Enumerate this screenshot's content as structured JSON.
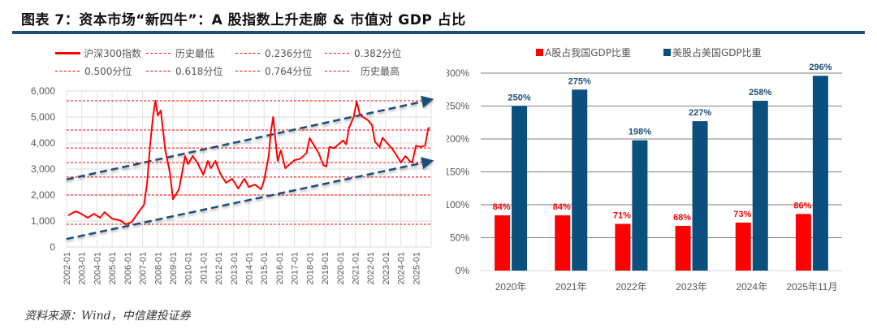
{
  "title": "图表 7：资本市场“新四牛”：A 股指数上升走廊 & 市值对 GDP 占比",
  "source": "资料来源：Wind，中信建投证券",
  "colors": {
    "accent": "#1f4e79",
    "red": "#ff0000",
    "blue": "#0b4f7f",
    "trend": "#1f4e79"
  },
  "chart_data": [
    {
      "type": "line",
      "title": "",
      "legend": [
        "沪深300指数",
        "历史最低",
        "0.236分位",
        "0.382分位",
        "0.500分位",
        "0.618分位",
        "0.764分位",
        "历史最高"
      ],
      "legend_position": "top",
      "ylim": [
        0,
        6000
      ],
      "y_ticks": [
        "0",
        "1,000",
        "2,000",
        "3,000",
        "4,000",
        "5,000",
        "6,000"
      ],
      "y_tick_values": [
        0,
        1000,
        2000,
        3000,
        4000,
        5000,
        6000
      ],
      "x_ticks": [
        "2002-01",
        "2003-01",
        "2004-01",
        "2005-01",
        "2006-01",
        "2007-01",
        "2008-01",
        "2009-01",
        "2010-01",
        "2011-01",
        "2012-01",
        "2013-01",
        "2014-01",
        "2015-01",
        "2016-01",
        "2017-01",
        "2018-01",
        "2019-01",
        "2020-01",
        "2021-01",
        "2022-01",
        "2023-01",
        "2024-01",
        "2025-01"
      ],
      "xlim": [
        2002.0,
        2026.0
      ],
      "grid": true,
      "series": [
        {
          "name": "沪深300指数",
          "x": [
            2002.1,
            2002.6,
            2002.9,
            2003.4,
            2003.8,
            2004.2,
            2004.5,
            2005.0,
            2005.5,
            2005.9,
            2006.3,
            2006.7,
            2007.1,
            2007.3,
            2007.5,
            2007.7,
            2007.85,
            2008.0,
            2008.2,
            2008.5,
            2008.8,
            2009.0,
            2009.4,
            2009.6,
            2009.8,
            2010.0,
            2010.3,
            2010.6,
            2011.0,
            2011.3,
            2011.5,
            2011.8,
            2012.1,
            2012.5,
            2012.9,
            2013.3,
            2013.7,
            2014.0,
            2014.4,
            2014.8,
            2015.0,
            2015.3,
            2015.45,
            2015.6,
            2015.75,
            2015.9,
            2016.1,
            2016.4,
            2016.7,
            2017.0,
            2017.4,
            2017.8,
            2018.0,
            2018.3,
            2018.6,
            2018.9,
            2019.1,
            2019.3,
            2019.6,
            2019.9,
            2020.2,
            2020.4,
            2020.6,
            2020.9,
            2021.1,
            2021.3,
            2021.5,
            2021.8,
            2022.1,
            2022.3,
            2022.6,
            2022.8,
            2023.1,
            2023.4,
            2023.7,
            2024.0,
            2024.3,
            2024.6,
            2024.75,
            2025.0,
            2025.3,
            2025.6,
            2025.8,
            2025.9
          ],
          "y": [
            1220,
            1375,
            1300,
            1125,
            1280,
            1125,
            1340,
            1090,
            1030,
            875,
            970,
            1310,
            1625,
            2470,
            3940,
            5060,
            5625,
            5060,
            5250,
            3720,
            2870,
            1840,
            2220,
            2840,
            3500,
            3190,
            3500,
            3250,
            2780,
            3310,
            3030,
            3310,
            2840,
            2470,
            2625,
            2250,
            2625,
            2310,
            2400,
            2220,
            2560,
            3470,
            4440,
            5000,
            4125,
            3310,
            3720,
            3030,
            3190,
            3340,
            3400,
            3620,
            4190,
            3900,
            3600,
            3150,
            3100,
            3850,
            3800,
            3950,
            4100,
            3950,
            4600,
            5000,
            5600,
            5100,
            5000,
            4900,
            4700,
            4050,
            3850,
            4200,
            4000,
            3800,
            3550,
            3250,
            3500,
            3300,
            3250,
            3900,
            3850,
            3900,
            4550,
            4600
          ]
        },
        {
          "name": "历史最低",
          "value": 875
        },
        {
          "name": "0.236分位",
          "value": 2000
        },
        {
          "name": "0.382分位",
          "value": 2690
        },
        {
          "name": "0.500分位",
          "value": 3250
        },
        {
          "name": "0.618分位",
          "value": 3810
        },
        {
          "name": "0.764分位",
          "value": 4500
        },
        {
          "name": "历史最高",
          "value": 5625
        }
      ],
      "trend_channel": {
        "upper": {
          "x": [
            2002.0,
            2026.0
          ],
          "y": [
            2600,
            5640
          ]
        },
        "lower": {
          "x": [
            2002.0,
            2026.0
          ],
          "y": [
            310,
            3280
          ]
        }
      }
    },
    {
      "type": "bar",
      "title": "",
      "categories": [
        "2020年",
        "2021年",
        "2022年",
        "2023年",
        "2024年",
        "2025年11月"
      ],
      "series": [
        {
          "name": "A股占我国GDP比重",
          "values": [
            84,
            84,
            71,
            68,
            73,
            86
          ],
          "labels": [
            "84%",
            "84%",
            "71%",
            "68%",
            "73%",
            "86%"
          ]
        },
        {
          "name": "美股占美国GDP比重",
          "values": [
            250,
            275,
            198,
            227,
            258,
            296
          ],
          "labels": [
            "250%",
            "275%",
            "198%",
            "227%",
            "258%",
            "296%"
          ]
        }
      ],
      "ylim": [
        0,
        300
      ],
      "y_ticks": [
        "0%",
        "50%",
        "100%",
        "150%",
        "200%",
        "250%",
        "300%"
      ],
      "y_tick_values": [
        0,
        50,
        100,
        150,
        200,
        250,
        300
      ],
      "legend_position": "top",
      "grid": true
    }
  ]
}
